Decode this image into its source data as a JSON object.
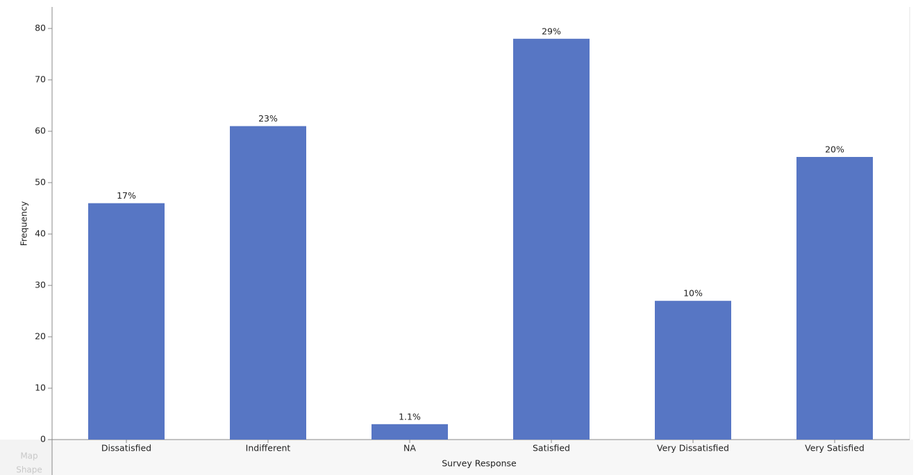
{
  "chart_data": {
    "type": "bar",
    "x_label": "Survey Response",
    "y_label": "Frequency",
    "categories": [
      "Dissatisfied",
      "Indifferent",
      "NA",
      "Satisfied",
      "Very Dissatisfied",
      "Very Satisfied"
    ],
    "values": [
      46,
      61,
      3,
      78,
      27,
      55
    ],
    "data_labels": [
      "17%",
      "23%",
      "1.1%",
      "29%",
      "10%",
      "20%"
    ],
    "color": "#5776c4",
    "ylim": [
      0,
      84
    ],
    "yticks": [
      0,
      10,
      20,
      30,
      40,
      50,
      60,
      70,
      80
    ],
    "grid": false
  },
  "drop_zone": [
    "Map",
    "Shape"
  ]
}
